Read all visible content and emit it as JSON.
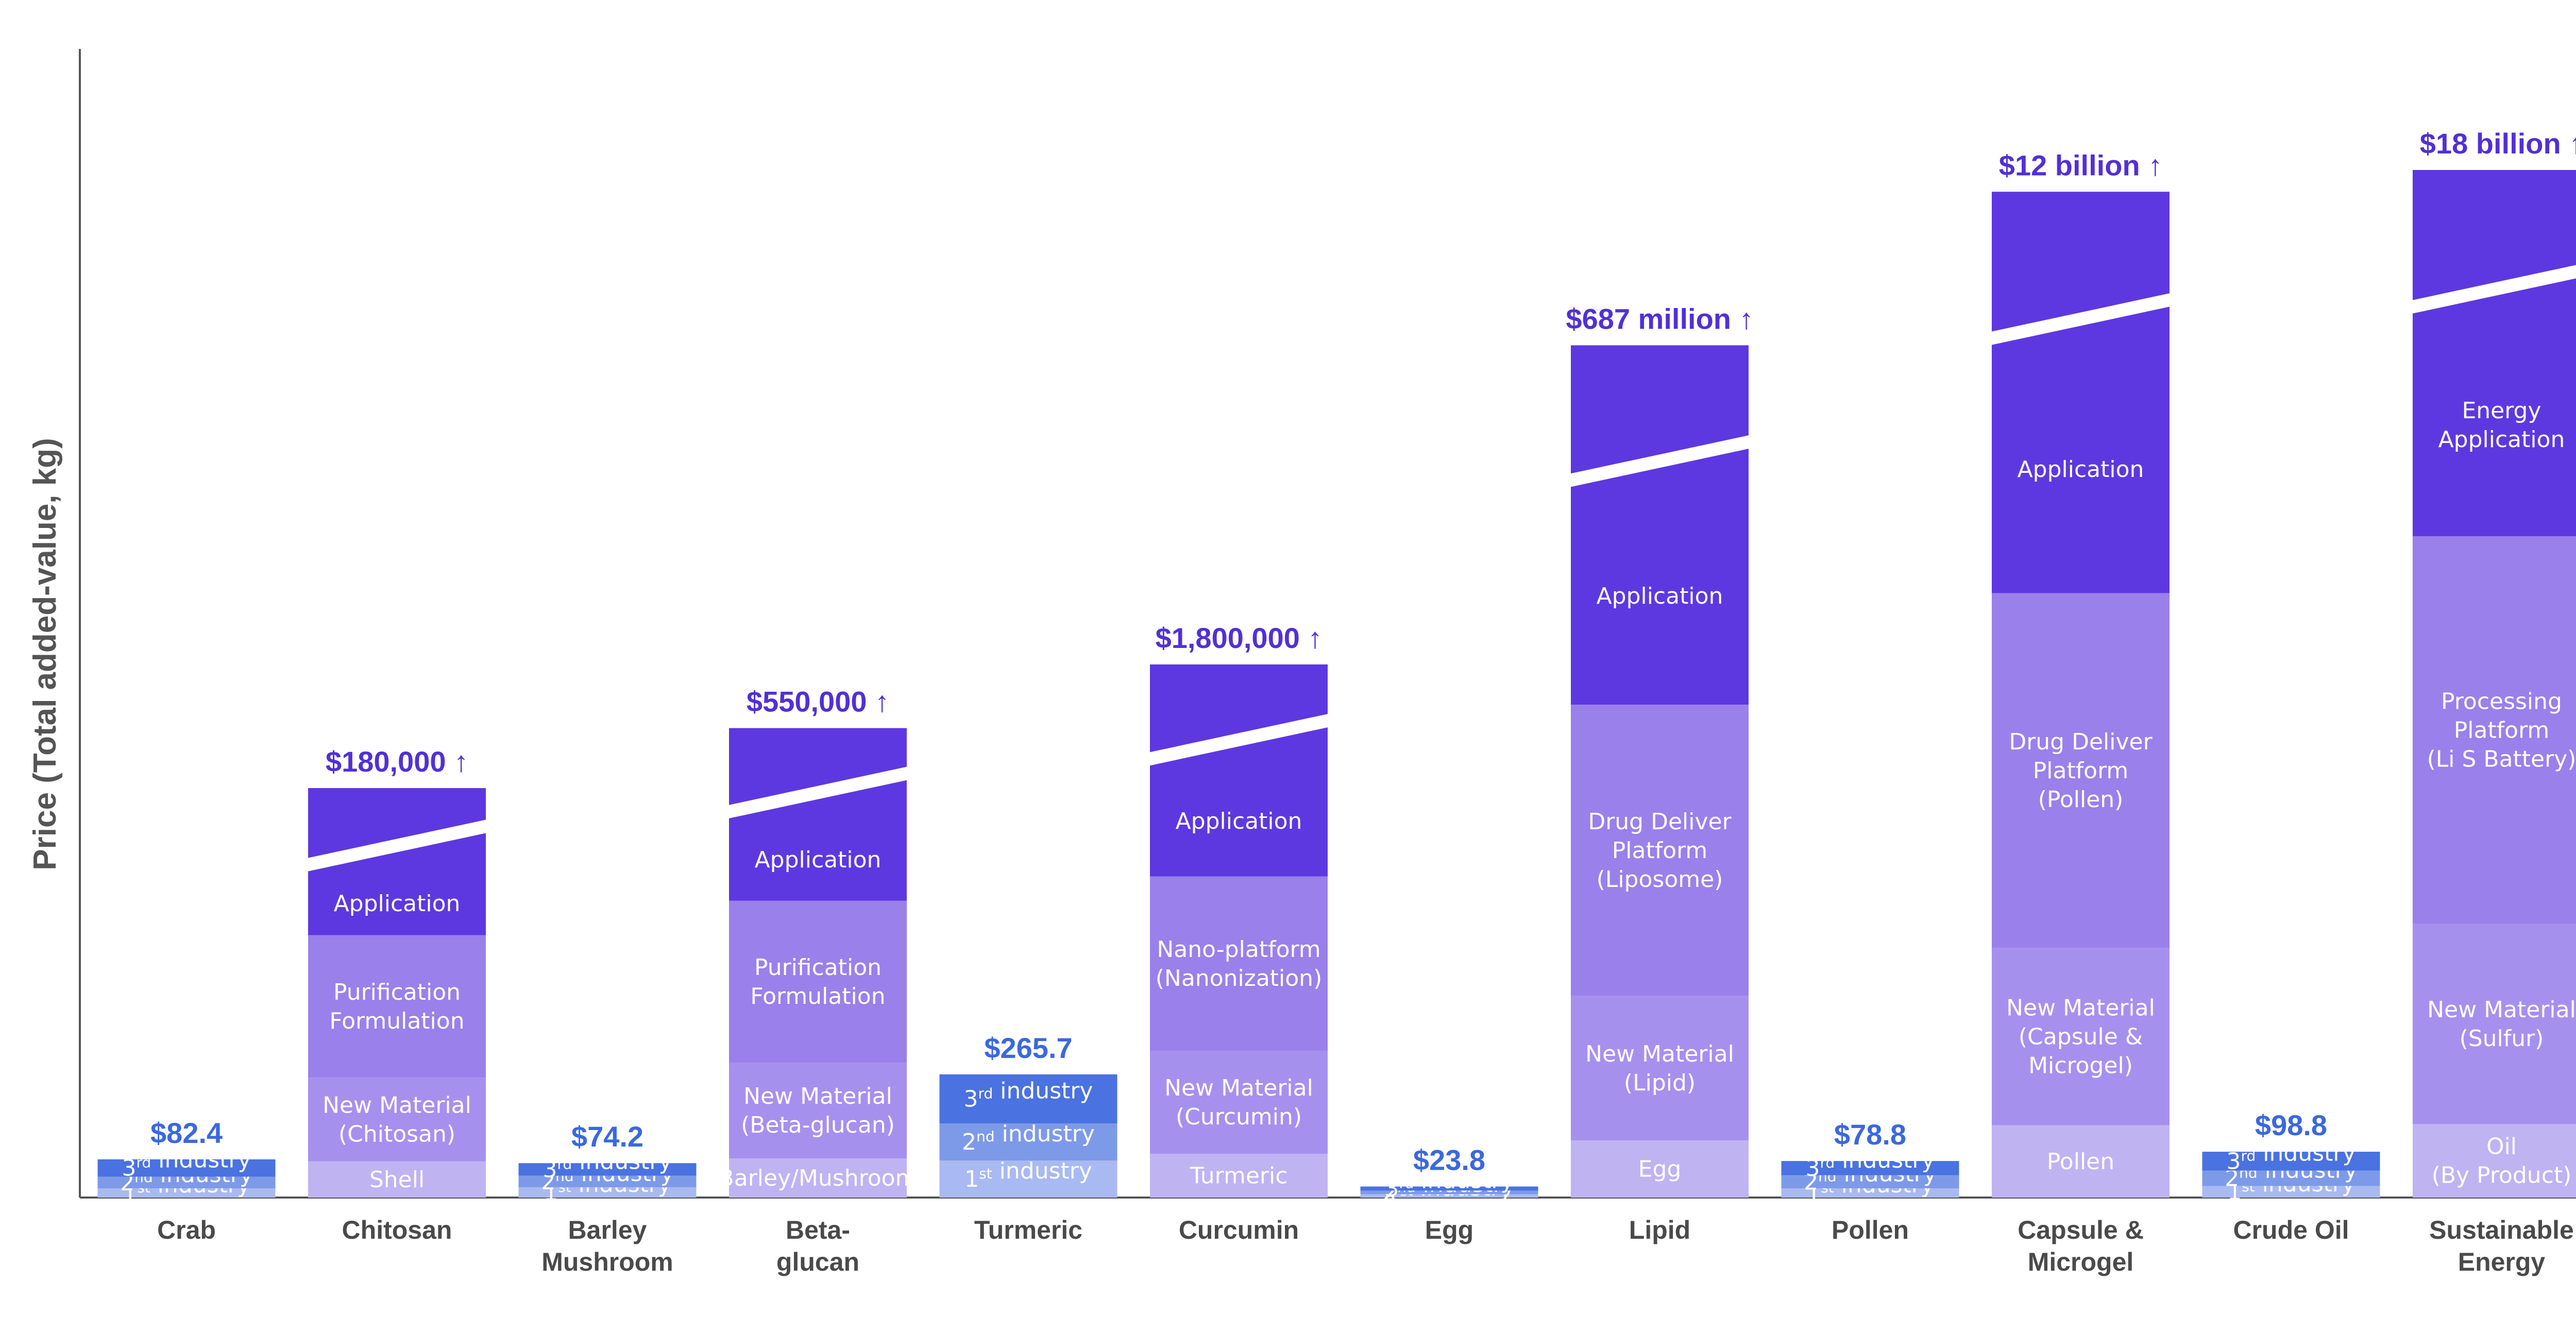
{
  "chart_data": {
    "type": "bar",
    "stacked": true,
    "title": "",
    "xlabel": "",
    "ylabel": "Price (Total added-value, kg)",
    "grid": false,
    "legend": "none",
    "colors": {
      "first": "#a9b9f2",
      "second": "#7d9ae9",
      "third": "#4a72e0",
      "shell": "#c0b3f2",
      "material": "#a690ee",
      "platform": "#9a80ea",
      "application": "#5d38e0",
      "price_blue": "#3b68df",
      "price_purple": "#5130d6",
      "axis": "#555555"
    },
    "categories": [
      {
        "name": "Crab",
        "lines": [
          "Crab"
        ],
        "price": "$82.4",
        "price_style": "blue",
        "broken": false,
        "total": 82.4,
        "segments": [
          {
            "tier": "first",
            "value": 20,
            "lines": [
              [
                {
                  "t": "1"
                },
                {
                  "t": "st",
                  "sup": true
                },
                {
                  "t": " industry"
                }
              ]
            ]
          },
          {
            "tier": "second",
            "value": 25,
            "lines": [
              [
                {
                  "t": "2"
                },
                {
                  "t": "nd",
                  "sup": true
                },
                {
                  "t": " industry"
                }
              ]
            ]
          },
          {
            "tier": "third",
            "value": 37.4,
            "lines": [
              [
                {
                  "t": "3"
                },
                {
                  "t": "rd",
                  "sup": true
                },
                {
                  "t": " industry"
                }
              ]
            ]
          }
        ]
      },
      {
        "name": "Chitosan",
        "lines": [
          "Chitosan"
        ],
        "price": "$180,000 ↑",
        "price_style": "purple",
        "broken": true,
        "total": 180000,
        "segments": [
          {
            "tier": "shell",
            "value": 60,
            "lines": [
              [
                {
                  "t": "Shell"
                }
              ]
            ]
          },
          {
            "tier": "material",
            "value": 180,
            "lines": [
              [
                {
                  "t": "New Material"
                }
              ],
              [
                {
                  "t": "(Chitosan)"
                }
              ]
            ]
          },
          {
            "tier": "platform",
            "value": 700,
            "lines": [
              [
                {
                  "t": "Purification"
                }
              ],
              [
                {
                  "t": "Formulation"
                }
              ]
            ]
          },
          {
            "tier": "application",
            "value": 179060,
            "lines": [
              [
                {
                  "t": "Application"
                }
              ]
            ]
          }
        ]
      },
      {
        "name": "Barley Mushroom",
        "lines": [
          "Barley",
          "Mushroom"
        ],
        "price": "$74.2",
        "price_style": "blue",
        "broken": false,
        "total": 74.2,
        "segments": [
          {
            "tier": "first",
            "value": 22,
            "lines": [
              [
                {
                  "t": "1"
                },
                {
                  "t": "st",
                  "sup": true
                },
                {
                  "t": " industry"
                }
              ]
            ]
          },
          {
            "tier": "second",
            "value": 25,
            "lines": [
              [
                {
                  "t": "2"
                },
                {
                  "t": "nd",
                  "sup": true
                },
                {
                  "t": " industry"
                }
              ]
            ]
          },
          {
            "tier": "third",
            "value": 27.2,
            "lines": [
              [
                {
                  "t": "3"
                },
                {
                  "t": "rd",
                  "sup": true
                },
                {
                  "t": " industry"
                }
              ]
            ]
          }
        ]
      },
      {
        "name": "Beta-glucan",
        "lines": [
          "Beta-",
          "glucan"
        ],
        "price": "$550,000 ↑",
        "price_style": "purple",
        "broken": true,
        "total": 550000,
        "segments": [
          {
            "tier": "shell",
            "value": 60,
            "lines": [
              [
                {
                  "t": "Barley/Mushroom"
                }
              ]
            ]
          },
          {
            "tier": "material",
            "value": 250,
            "lines": [
              [
                {
                  "t": "New Material"
                }
              ],
              [
                {
                  "t": "(Beta-glucan)"
                }
              ]
            ]
          },
          {
            "tier": "platform",
            "value": 1000,
            "lines": [
              [
                {
                  "t": "Purification"
                }
              ],
              [
                {
                  "t": "Formulation"
                }
              ]
            ]
          },
          {
            "tier": "application",
            "value": 548690,
            "lines": [
              [
                {
                  "t": "Application"
                }
              ]
            ]
          }
        ]
      },
      {
        "name": "Turmeric",
        "lines": [
          "Turmeric"
        ],
        "price": "$265.7",
        "price_style": "blue",
        "broken": false,
        "total": 265.7,
        "segments": [
          {
            "tier": "first",
            "value": 80,
            "lines": [
              [
                {
                  "t": "1"
                },
                {
                  "t": "st",
                  "sup": true
                },
                {
                  "t": " industry"
                }
              ]
            ]
          },
          {
            "tier": "second",
            "value": 80,
            "lines": [
              [
                {
                  "t": "2"
                },
                {
                  "t": "nd",
                  "sup": true
                },
                {
                  "t": " industry"
                }
              ]
            ]
          },
          {
            "tier": "third",
            "value": 105.7,
            "lines": [
              [
                {
                  "t": "3"
                },
                {
                  "t": "rd",
                  "sup": true
                },
                {
                  "t": " industry"
                }
              ]
            ]
          }
        ]
      },
      {
        "name": "Curcumin",
        "lines": [
          "Curcumin"
        ],
        "price": "$1,800,000 ↑",
        "price_style": "purple",
        "broken": true,
        "total": 1800000,
        "segments": [
          {
            "tier": "shell",
            "value": 70,
            "lines": [
              [
                {
                  "t": "Turmeric"
                }
              ]
            ]
          },
          {
            "tier": "material",
            "value": 250,
            "lines": [
              [
                {
                  "t": "New Material"
                }
              ],
              [
                {
                  "t": "(Curcumin)"
                }
              ]
            ]
          },
          {
            "tier": "platform",
            "value": 1000,
            "lines": [
              [
                {
                  "t": "Nano-platform"
                }
              ],
              [
                {
                  "t": "(Nanonization)"
                }
              ]
            ]
          },
          {
            "tier": "application",
            "value": 1798680,
            "lines": [
              [
                {
                  "t": "Application"
                }
              ]
            ]
          }
        ]
      },
      {
        "name": "Egg",
        "lines": [
          "Egg"
        ],
        "price": "$23.8",
        "price_style": "blue",
        "broken": false,
        "total": 23.8,
        "segments": [
          {
            "tier": "first",
            "value": 7,
            "lines": [
              [
                {
                  "t": "1"
                },
                {
                  "t": "st",
                  "sup": true
                },
                {
                  "t": " industry"
                }
              ]
            ]
          },
          {
            "tier": "second",
            "value": 8,
            "lines": [
              [
                {
                  "t": "2"
                },
                {
                  "t": "nd",
                  "sup": true
                },
                {
                  "t": " industry"
                }
              ]
            ]
          },
          {
            "tier": "third",
            "value": 8.8,
            "lines": [
              [
                {
                  "t": "3"
                },
                {
                  "t": "rd",
                  "sup": true
                },
                {
                  "t": " industry"
                }
              ]
            ]
          }
        ]
      },
      {
        "name": "Lipid",
        "lines": [
          "Lipid"
        ],
        "price": "$687 million ↑",
        "price_style": "purple",
        "broken": true,
        "total": 687000000,
        "segments": [
          {
            "tier": "shell",
            "value": 60,
            "lines": [
              [
                {
                  "t": "Egg"
                }
              ]
            ]
          },
          {
            "tier": "material",
            "value": 300,
            "lines": [
              [
                {
                  "t": "New Material"
                }
              ],
              [
                {
                  "t": "(Lipid)"
                }
              ]
            ]
          },
          {
            "tier": "platform",
            "value": 5000,
            "lines": [
              [
                {
                  "t": "Drug Deliver"
                }
              ],
              [
                {
                  "t": "Platform"
                }
              ],
              [
                {
                  "t": "(Liposome)"
                }
              ]
            ]
          },
          {
            "tier": "application",
            "value": 686994640,
            "lines": [
              [
                {
                  "t": "Application"
                }
              ]
            ]
          }
        ]
      },
      {
        "name": "Pollen",
        "lines": [
          "Pollen"
        ],
        "price": "$78.8",
        "price_style": "blue",
        "broken": false,
        "total": 78.8,
        "segments": [
          {
            "tier": "first",
            "value": 20,
            "lines": [
              [
                {
                  "t": "1"
                },
                {
                  "t": "st",
                  "sup": true
                },
                {
                  "t": " industry"
                }
              ]
            ]
          },
          {
            "tier": "second",
            "value": 28,
            "lines": [
              [
                {
                  "t": "2"
                },
                {
                  "t": "nd",
                  "sup": true
                },
                {
                  "t": " industry"
                }
              ]
            ]
          },
          {
            "tier": "third",
            "value": 30.8,
            "lines": [
              [
                {
                  "t": "3"
                },
                {
                  "t": "rd",
                  "sup": true
                },
                {
                  "t": " industry"
                }
              ]
            ]
          }
        ]
      },
      {
        "name": "Capsule & Microgel",
        "lines": [
          "Capsule &",
          "Microgel"
        ],
        "price": "$12 billion ↑",
        "price_style": "purple",
        "broken": true,
        "total": 12000000000,
        "segments": [
          {
            "tier": "shell",
            "value": 100,
            "lines": [
              [
                {
                  "t": "Pollen"
                }
              ]
            ]
          },
          {
            "tier": "material",
            "value": 500,
            "lines": [
              [
                {
                  "t": "New Material"
                }
              ],
              [
                {
                  "t": "(Capsule &"
                }
              ],
              [
                {
                  "t": "Microgel)"
                }
              ]
            ]
          },
          {
            "tier": "platform",
            "value": 10000,
            "lines": [
              [
                {
                  "t": "Drug Deliver"
                }
              ],
              [
                {
                  "t": "Platform"
                }
              ],
              [
                {
                  "t": "(Pollen)"
                }
              ]
            ]
          },
          {
            "tier": "application",
            "value": 11999989400,
            "lines": [
              [
                {
                  "t": "Application"
                }
              ]
            ]
          }
        ]
      },
      {
        "name": "Crude Oil",
        "lines": [
          "Crude Oil"
        ],
        "price": "$98.8",
        "price_style": "blue",
        "broken": false,
        "total": 98.8,
        "segments": [
          {
            "tier": "first",
            "value": 25,
            "lines": [
              [
                {
                  "t": "1"
                },
                {
                  "t": "st",
                  "sup": true
                },
                {
                  "t": " industry"
                }
              ]
            ]
          },
          {
            "tier": "second",
            "value": 33,
            "lines": [
              [
                {
                  "t": "2"
                },
                {
                  "t": "nd",
                  "sup": true
                },
                {
                  "t": " industry"
                }
              ]
            ]
          },
          {
            "tier": "third",
            "value": 40.8,
            "lines": [
              [
                {
                  "t": "3"
                },
                {
                  "t": "rd",
                  "sup": true
                },
                {
                  "t": " industry"
                }
              ]
            ]
          }
        ]
      },
      {
        "name": "Sustainable Energy",
        "lines": [
          "Sustainable",
          "Energy"
        ],
        "price": "$18 billion ↑",
        "price_style": "purple",
        "broken": true,
        "total": 18000000000,
        "segments": [
          {
            "tier": "shell",
            "value": 100,
            "lines": [
              [
                {
                  "t": "Oil"
                }
              ],
              [
                {
                  "t": "(By Product)"
                }
              ]
            ]
          },
          {
            "tier": "material",
            "value": 1000,
            "lines": [
              [
                {
                  "t": "New Material"
                }
              ],
              [
                {
                  "t": "(Sulfur)"
                }
              ]
            ]
          },
          {
            "tier": "platform",
            "value": 20000,
            "lines": [
              [
                {
                  "t": "Processing"
                }
              ],
              [
                {
                  "t": "Platform"
                }
              ],
              [
                {
                  "t": "(Li S Battery)"
                }
              ]
            ]
          },
          {
            "tier": "application",
            "value": 17999978900,
            "lines": [
              [
                {
                  "t": "Energy"
                }
              ],
              [
                {
                  "t": "Application"
                }
              ]
            ]
          }
        ]
      }
    ]
  }
}
